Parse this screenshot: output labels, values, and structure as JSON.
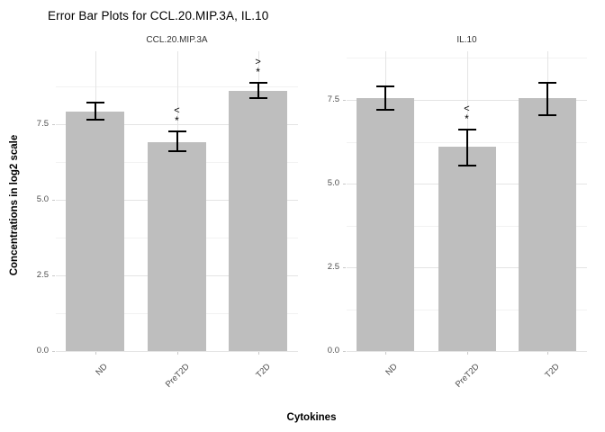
{
  "title": "Error Bar Plots for CCL.20.MIP.3A, IL.10",
  "x_axis_title": "Cytokines",
  "y_axis_title": "Concentrations in log2 scale",
  "colors": {
    "bar_fill": "#bebebe",
    "error_bar": "#000000",
    "grid_major": "#e4e4e4",
    "grid_minor": "#f2f2f2",
    "axis_text": "#4d4d4d",
    "strip_text": "#333333",
    "background": "#ffffff"
  },
  "chart_data": {
    "type": "bar",
    "categories": [
      "ND",
      "PreT2D",
      "T2D"
    ],
    "xlabel": "Cytokines",
    "ylabel": "Concentrations in log2 scale",
    "y_tick_values": [
      0,
      2.5,
      5,
      7.5
    ],
    "y_tick_labels": [
      "0.0",
      "2.5",
      "5.0",
      "7.5"
    ],
    "y_minor_values": [
      1.25,
      3.75,
      6.25,
      8.75
    ],
    "grid": "major and minor horizontal, major vertical at category centers",
    "legend_position": "none",
    "facets": [
      {
        "label": "CCL.20.MIP.3A",
        "ylim": [
          0,
          9.9
        ],
        "bars": [
          {
            "category": "ND",
            "mean": 7.9,
            "lower": 7.65,
            "upper": 8.2,
            "annotation": null
          },
          {
            "category": "PreT2D",
            "mean": 6.9,
            "lower": 6.6,
            "upper": 7.25,
            "annotation": [
              "<",
              "*"
            ]
          },
          {
            "category": "T2D",
            "mean": 8.6,
            "lower": 8.35,
            "upper": 8.85,
            "annotation": [
              ">",
              "*"
            ]
          }
        ]
      },
      {
        "label": "IL.10",
        "ylim": [
          0,
          8.95
        ],
        "bars": [
          {
            "category": "ND",
            "mean": 7.55,
            "lower": 7.2,
            "upper": 7.9,
            "annotation": null
          },
          {
            "category": "PreT2D",
            "mean": 6.1,
            "lower": 5.55,
            "upper": 6.6,
            "annotation": [
              "<",
              "*"
            ]
          },
          {
            "category": "T2D",
            "mean": 7.55,
            "lower": 7.05,
            "upper": 8.0,
            "annotation": null
          }
        ]
      }
    ]
  }
}
